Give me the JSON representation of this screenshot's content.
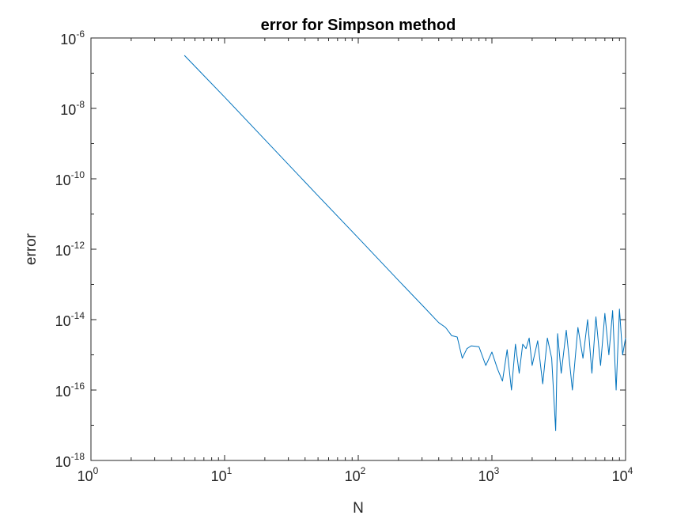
{
  "chart_data": {
    "type": "line",
    "title": "error for Simpson method",
    "xlabel": "N",
    "ylabel": "error",
    "xscale": "log",
    "yscale": "log",
    "xlim": [
      1,
      10000
    ],
    "ylim": [
      1e-18,
      1e-06
    ],
    "grid": false,
    "legend": "none",
    "x_ticks": [
      {
        "base": "10",
        "exp": "0",
        "value": 1
      },
      {
        "base": "10",
        "exp": "1",
        "value": 10
      },
      {
        "base": "10",
        "exp": "2",
        "value": 100
      },
      {
        "base": "10",
        "exp": "3",
        "value": 1000
      },
      {
        "base": "10",
        "exp": "4",
        "value": 10000
      }
    ],
    "y_ticks": [
      {
        "base": "10",
        "exp": "-18",
        "value": 1e-18
      },
      {
        "base": "10",
        "exp": "-16",
        "value": 1e-16
      },
      {
        "base": "10",
        "exp": "-14",
        "value": 1e-14
      },
      {
        "base": "10",
        "exp": "-12",
        "value": 1e-12
      },
      {
        "base": "10",
        "exp": "-10",
        "value": 1e-10
      },
      {
        "base": "10",
        "exp": "-8",
        "value": 1e-08
      },
      {
        "base": "10",
        "exp": "-6",
        "value": 1e-06
      }
    ],
    "series": [
      {
        "color": "#0072bd",
        "x": [
          5,
          10,
          20,
          50,
          100,
          200,
          300,
          400,
          450,
          500,
          550,
          600,
          650,
          700,
          800,
          900,
          1000,
          1100,
          1200,
          1300,
          1400,
          1500,
          1600,
          1700,
          1800,
          1900,
          2000,
          2200,
          2400,
          2600,
          2800,
          3000,
          3100,
          3300,
          3600,
          4000,
          4400,
          4800,
          5200,
          5600,
          6000,
          6500,
          7000,
          7500,
          8000,
          8500,
          9000,
          9500,
          10000
        ],
        "y": [
          3.2e-07,
          2.1e-08,
          1.3e-09,
          3.3e-11,
          2.1e-12,
          1.3e-13,
          2.6e-14,
          8.2e-15,
          6e-15,
          3.5e-15,
          3.2e-15,
          8e-16,
          1.5e-15,
          1.8e-15,
          1.7e-15,
          5e-16,
          1.2e-15,
          4e-16,
          1.8e-16,
          1.4e-15,
          1e-16,
          2e-15,
          3e-16,
          2e-15,
          1.5e-15,
          3e-15,
          5e-16,
          2.5e-15,
          1.5e-16,
          3e-15,
          8e-16,
          7e-18,
          4e-15,
          3e-16,
          5e-15,
          1e-16,
          6e-15,
          8e-16,
          1e-14,
          3e-16,
          1.2e-14,
          5e-16,
          1.5e-14,
          1e-15,
          1.8e-14,
          1e-16,
          2e-14,
          1e-15,
          3e-15
        ]
      }
    ]
  }
}
